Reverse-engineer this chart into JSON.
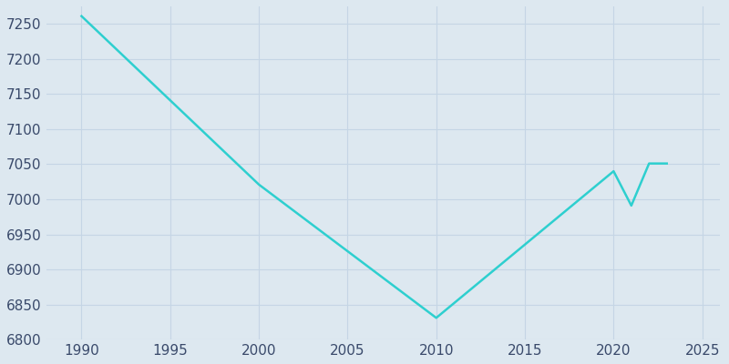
{
  "years": [
    1990,
    2000,
    2010,
    2020,
    2021,
    2022,
    2023
  ],
  "population": [
    7261,
    7021,
    6831,
    7040,
    6991,
    7051,
    7051
  ],
  "line_color": "#2ECFCF",
  "background_color": "#dde8f0",
  "grid_color": "#c5d5e5",
  "tick_label_color": "#3a4a6b",
  "xlim": [
    1988,
    2026
  ],
  "ylim": [
    6800,
    7275
  ],
  "xticks": [
    1990,
    1995,
    2000,
    2005,
    2010,
    2015,
    2020,
    2025
  ],
  "yticks": [
    6800,
    6850,
    6900,
    6950,
    7000,
    7050,
    7100,
    7150,
    7200,
    7250
  ],
  "linewidth": 1.8,
  "figsize": [
    8.0,
    4.0
  ],
  "dpi": 100,
  "tick_fontsize": 11
}
